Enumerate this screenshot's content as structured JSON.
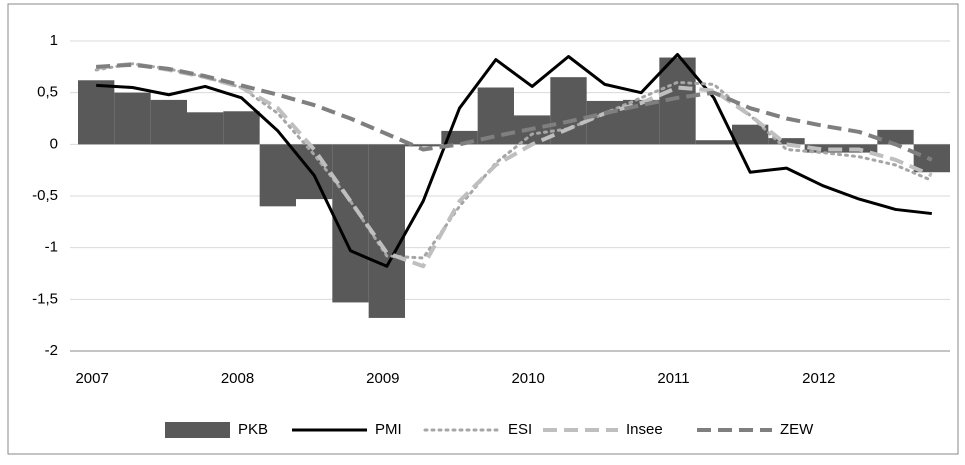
{
  "chart_data": {
    "type": "combo",
    "categories": [
      "2007",
      null,
      null,
      null,
      "2008",
      null,
      null,
      null,
      "2009",
      null,
      null,
      null,
      "2010",
      null,
      null,
      null,
      "2011",
      null,
      null,
      null,
      "2012",
      null,
      null,
      null
    ],
    "series": [
      {
        "name": "PKB",
        "type": "bar",
        "color": "#595959",
        "values": [
          0.62,
          0.5,
          0.43,
          0.31,
          0.32,
          -0.6,
          -0.53,
          -1.53,
          -1.68,
          -0.02,
          0.13,
          0.55,
          0.28,
          0.65,
          0.42,
          0.43,
          0.84,
          0.04,
          0.19,
          0.06,
          -0.08,
          -0.08,
          0.14,
          -0.27
        ]
      },
      {
        "name": "PMI",
        "type": "line",
        "style": "solid",
        "color": "#000000",
        "values": [
          0.57,
          0.55,
          0.48,
          0.56,
          0.45,
          0.13,
          -0.3,
          -1.03,
          -1.18,
          -0.55,
          0.35,
          0.82,
          0.56,
          0.85,
          0.58,
          0.5,
          0.87,
          0.45,
          -0.27,
          -0.23,
          -0.4,
          -0.53,
          -0.63,
          -0.67
        ]
      },
      {
        "name": "ESI",
        "type": "line",
        "style": "dotted",
        "color": "#a6a6a6",
        "values": [
          0.72,
          0.78,
          0.73,
          0.65,
          0.55,
          0.3,
          -0.1,
          -0.55,
          -1.08,
          -1.1,
          -0.6,
          -0.18,
          0.1,
          0.15,
          0.3,
          0.45,
          0.6,
          0.58,
          0.28,
          -0.05,
          -0.08,
          -0.12,
          -0.2,
          -0.35
        ]
      },
      {
        "name": "Insee",
        "type": "line",
        "style": "dashed",
        "color": "#bfbfbf",
        "values": [
          0.74,
          0.78,
          0.72,
          0.65,
          0.55,
          0.35,
          -0.05,
          -0.55,
          -1.05,
          -1.18,
          -0.55,
          -0.2,
          0.0,
          0.15,
          0.3,
          0.4,
          0.55,
          0.52,
          0.28,
          0.0,
          -0.05,
          -0.05,
          -0.15,
          -0.3
        ]
      },
      {
        "name": "ZEW",
        "type": "line",
        "style": "dashed",
        "color": "#7f7f7f",
        "values": [
          0.75,
          0.77,
          0.73,
          0.66,
          0.57,
          0.48,
          0.38,
          0.25,
          0.1,
          -0.05,
          0.0,
          0.08,
          0.15,
          0.22,
          0.3,
          0.38,
          0.45,
          0.5,
          0.35,
          0.25,
          0.18,
          0.12,
          0.0,
          -0.15
        ]
      }
    ],
    "ylim": [
      -2,
      1
    ],
    "yticks": [
      {
        "value": -2,
        "label": "-2"
      },
      {
        "value": -1.5,
        "label": "-1,5"
      },
      {
        "value": -1,
        "label": "-1"
      },
      {
        "value": -0.5,
        "label": "-0,5"
      },
      {
        "value": 0,
        "label": "0"
      },
      {
        "value": 0.5,
        "label": "0,5"
      },
      {
        "value": 1,
        "label": "1"
      }
    ],
    "grid": true,
    "legend": "bottom"
  }
}
